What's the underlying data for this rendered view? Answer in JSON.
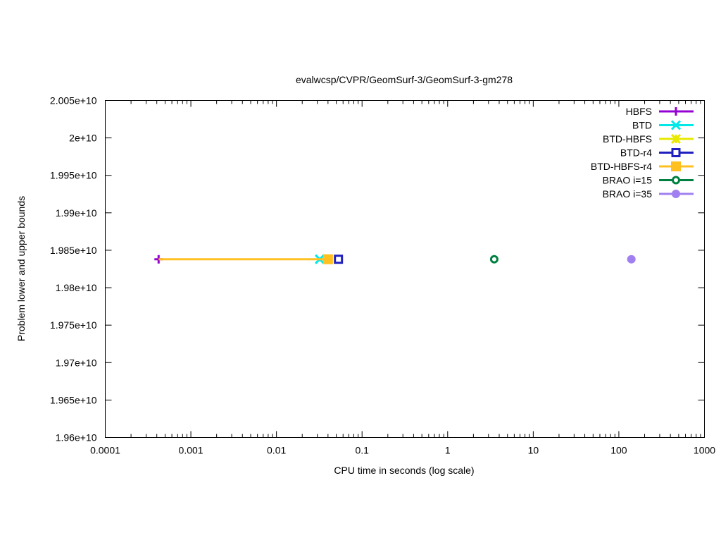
{
  "chart_data": {
    "type": "line",
    "title": "evalwcsp/CVPR/GeomSurf-3/GeomSurf-3-gm278",
    "xlabel": "CPU time in seconds (log scale)",
    "ylabel": "Problem lower and upper bounds",
    "x_scale": "log",
    "xlim": [
      0.0001,
      1000
    ],
    "ylim": [
      19600000000,
      20050000000
    ],
    "x_ticks": [
      "0.0001",
      "0.001",
      "0.01",
      "0.1",
      "1",
      "10",
      "100",
      "1000"
    ],
    "y_ticks": [
      "1.96e+10",
      "1.965e+10",
      "1.97e+10",
      "1.975e+10",
      "1.98e+10",
      "1.985e+10",
      "1.99e+10",
      "1.995e+10",
      "2e+10",
      "2.005e+10"
    ],
    "legend_position": "top-right",
    "grid": false,
    "series": [
      {
        "name": "HBFS",
        "color": "#9400d3",
        "marker": "plus",
        "x": [
          0.00042
        ],
        "y": [
          19838000000
        ]
      },
      {
        "name": "BTD",
        "color": "#00e8e8",
        "marker": "cross",
        "x": [
          0.032
        ],
        "y": [
          19838000000
        ]
      },
      {
        "name": "BTD-HBFS",
        "color": "#e8e800",
        "marker": "star",
        "x": [
          0.04
        ],
        "y": [
          19838000000
        ]
      },
      {
        "name": "BTD-r4",
        "color": "#2020c0",
        "marker": "open-square",
        "x": [
          0.053
        ],
        "y": [
          19838000000
        ]
      },
      {
        "name": "BTD-HBFS-r4",
        "color": "#ffc020",
        "marker": "filled-square",
        "x": [
          0.00042,
          0.04
        ],
        "y": [
          19838000000,
          19838000000
        ]
      },
      {
        "name": "BRAO i=15",
        "color": "#008040",
        "marker": "open-circle",
        "x": [
          3.5
        ],
        "y": [
          19838000000
        ]
      },
      {
        "name": "BRAO i=35",
        "color": "#a080f0",
        "marker": "filled-circle",
        "x": [
          140
        ],
        "y": [
          19838000000
        ]
      }
    ]
  }
}
